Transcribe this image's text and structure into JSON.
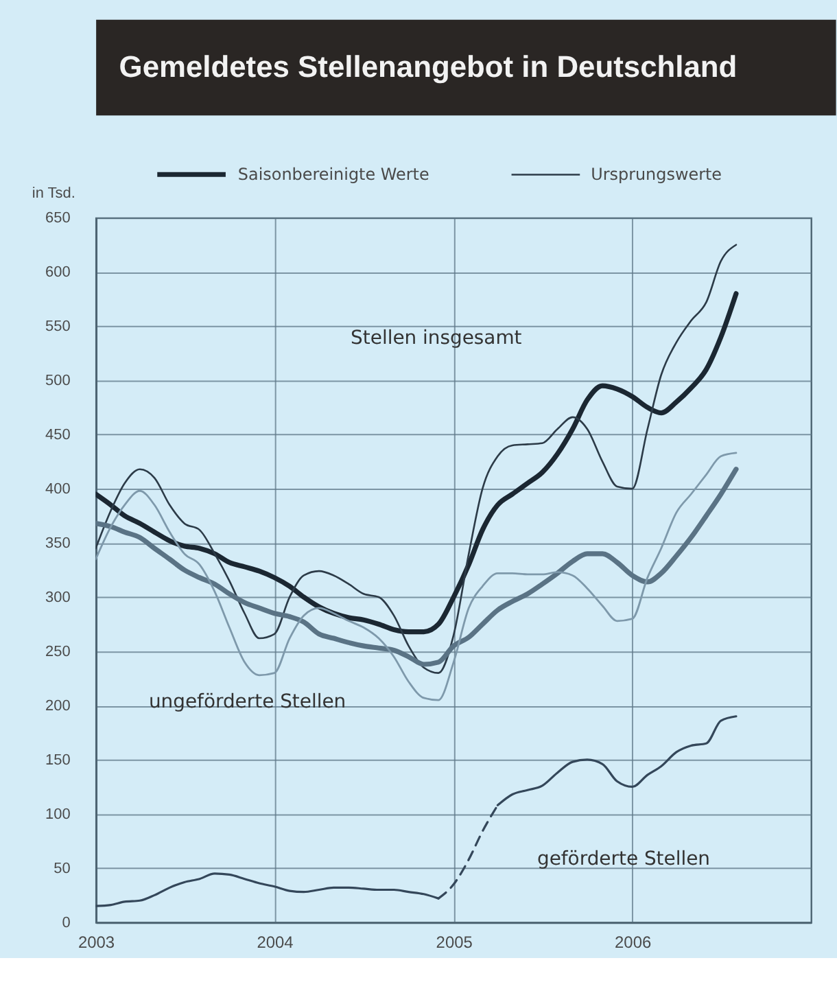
{
  "chart_data": {
    "type": "line",
    "title": "Gemeldetes Stellenangebot in Deutschland",
    "ylabel": "in Tsd.",
    "x": [
      "2003-01",
      "2003-02",
      "2003-03",
      "2003-04",
      "2003-05",
      "2003-06",
      "2003-07",
      "2003-08",
      "2003-09",
      "2003-10",
      "2003-11",
      "2003-12",
      "2004-01",
      "2004-02",
      "2004-03",
      "2004-04",
      "2004-05",
      "2004-06",
      "2004-07",
      "2004-08",
      "2004-09",
      "2004-10",
      "2004-11",
      "2004-12",
      "2005-01",
      "2005-02",
      "2005-03",
      "2005-04",
      "2005-05",
      "2005-06",
      "2005-07",
      "2005-08",
      "2005-09",
      "2005-10",
      "2005-11",
      "2005-12",
      "2006-01",
      "2006-02",
      "2006-03",
      "2006-04",
      "2006-05",
      "2006-06",
      "2006-07",
      "2006-08"
    ],
    "xlim": [
      "2003",
      "2007"
    ],
    "xticks": [
      "2003",
      "2004",
      "2005",
      "2006"
    ],
    "ylim": [
      0,
      650
    ],
    "yticks": [
      0,
      50,
      100,
      150,
      200,
      250,
      300,
      350,
      400,
      450,
      500,
      550,
      600,
      650
    ],
    "grid": true,
    "legend": "top",
    "series": [
      {
        "name": "Saisonbereinigte Werte",
        "color": "#1b2732",
        "values": [
          395,
          385,
          375,
          368,
          360,
          352,
          347,
          345,
          340,
          332,
          328,
          324,
          318,
          310,
          300,
          291,
          285,
          281,
          279,
          275,
          270,
          268,
          268,
          275,
          300,
          330,
          362,
          385,
          395,
          405,
          415,
          432,
          455,
          482,
          495,
          492,
          485,
          475,
          470,
          480,
          493,
          510,
          540,
          580
        ]
      },
      {
        "name": "Ursprungswerte",
        "color": "#2c3b48",
        "values": [
          345,
          380,
          405,
          418,
          410,
          385,
          368,
          362,
          340,
          315,
          285,
          262,
          266,
          300,
          320,
          324,
          320,
          312,
          303,
          300,
          283,
          255,
          235,
          230,
          265,
          340,
          400,
          430,
          440,
          441,
          442,
          455,
          466,
          455,
          425,
          402,
          400,
          455,
          505,
          535,
          555,
          572,
          610,
          625
        ]
      },
      {
        "color": "#5a7385",
        "values": [
          368,
          365,
          360,
          355,
          345,
          335,
          325,
          318,
          312,
          303,
          295,
          290,
          285,
          282,
          277,
          266,
          262,
          258,
          255,
          253,
          251,
          245,
          238,
          240,
          255,
          263,
          275,
          288,
          296,
          303,
          312,
          322,
          333,
          340,
          340,
          332,
          320,
          314,
          322,
          338,
          355,
          375,
          395,
          418
        ]
      },
      {
        "color": "#7e99ab",
        "values": [
          335,
          365,
          385,
          398,
          385,
          360,
          340,
          330,
          305,
          272,
          240,
          228,
          230,
          262,
          283,
          290,
          285,
          278,
          272,
          262,
          245,
          222,
          207,
          205,
          240,
          290,
          310,
          322,
          322,
          321,
          321,
          323,
          320,
          308,
          292,
          278,
          280,
          318,
          345,
          378,
          395,
          413,
          430,
          433
        ]
      },
      {
        "color": "#34475a",
        "x": [
          "2003-01",
          "2003-02",
          "2003-03",
          "2003-04",
          "2003-05",
          "2003-06",
          "2003-07",
          "2003-08",
          "2003-09",
          "2003-10",
          "2003-11",
          "2003-12",
          "2004-01",
          "2004-02",
          "2004-03",
          "2004-04",
          "2004-05",
          "2004-06",
          "2004-07",
          "2004-08",
          "2004-09",
          "2004-10",
          "2004-11",
          "2004-12"
        ],
        "values": [
          15,
          16,
          19,
          20,
          25,
          32,
          37,
          40,
          45,
          44,
          40,
          36,
          33,
          29,
          28,
          30,
          32,
          32,
          31,
          30,
          30,
          28,
          26,
          22
        ]
      },
      {
        "color": "#34475a",
        "line_style": "dashed",
        "x": [
          "2004-12",
          "2005-01",
          "2005-02",
          "2005-03",
          "2005-04"
        ],
        "values": [
          22,
          35,
          58,
          84,
          108
        ]
      },
      {
        "color": "#34475a",
        "x": [
          "2005-04",
          "2005-05",
          "2005-06",
          "2005-07",
          "2005-08",
          "2005-09",
          "2005-10",
          "2005-11",
          "2005-12",
          "2006-01",
          "2006-02",
          "2006-03",
          "2006-04",
          "2006-05",
          "2006-06",
          "2006-07",
          "2006-08"
        ],
        "values": [
          108,
          118,
          122,
          126,
          138,
          148,
          150,
          146,
          130,
          125,
          136,
          144,
          157,
          163,
          165,
          186,
          190
        ]
      }
    ],
    "annotations": [
      "Stellen insgesamt",
      "ungeförderte Stellen",
      "geförderte Stellen"
    ]
  }
}
